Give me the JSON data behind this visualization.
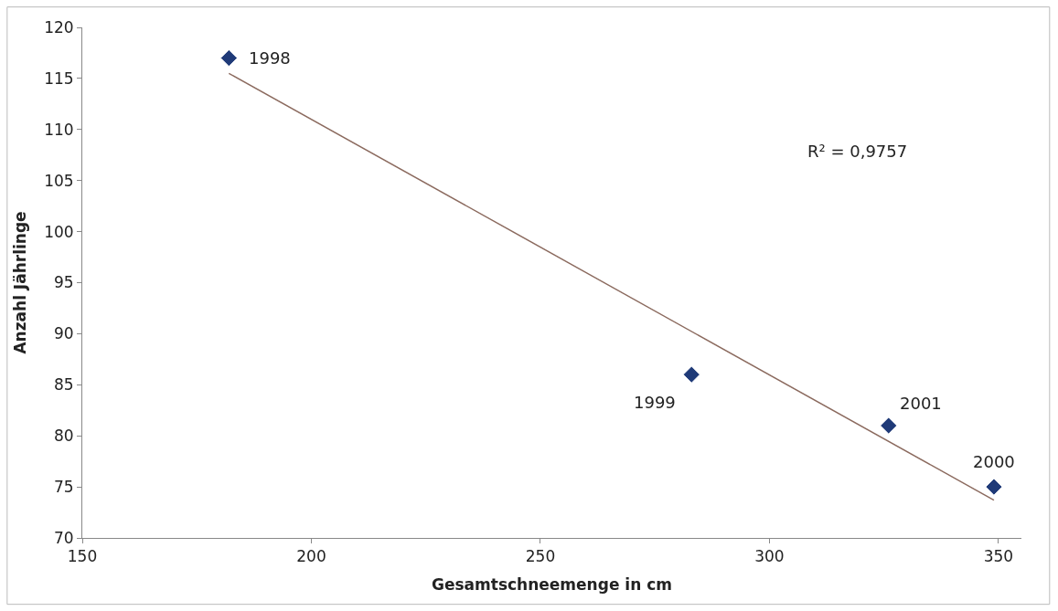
{
  "chart_data": {
    "type": "scatter",
    "xlabel": "Gesamtschneemenge in cm",
    "ylabel": "Anzahl Jährlinge",
    "x": [
      182,
      283,
      326,
      349
    ],
    "series": [
      {
        "color": "#1f3a78",
        "marker": "diamond",
        "values": [
          117,
          86,
          81,
          75
        ]
      },
      {
        "type": "line",
        "color": "#8b6a5e",
        "x": [
          182,
          349
        ],
        "values": [
          115.5,
          73.7
        ],
        "marker": "none"
      }
    ],
    "annotations": [
      {
        "text": "1998",
        "x": 182,
        "y": 117
      },
      {
        "text": "1999",
        "x": 283,
        "y": 86
      },
      {
        "text": "2001",
        "x": 326,
        "y": 81
      },
      {
        "text": "2000",
        "x": 349,
        "y": 75
      },
      "R² = 0,9757"
    ],
    "xlim": [
      150,
      355
    ],
    "xticks": [
      150,
      200,
      250,
      300,
      350
    ],
    "ylim": [
      70,
      120
    ],
    "yticks": [
      70,
      75,
      80,
      85,
      90,
      95,
      100,
      105,
      110,
      115,
      120
    ]
  }
}
